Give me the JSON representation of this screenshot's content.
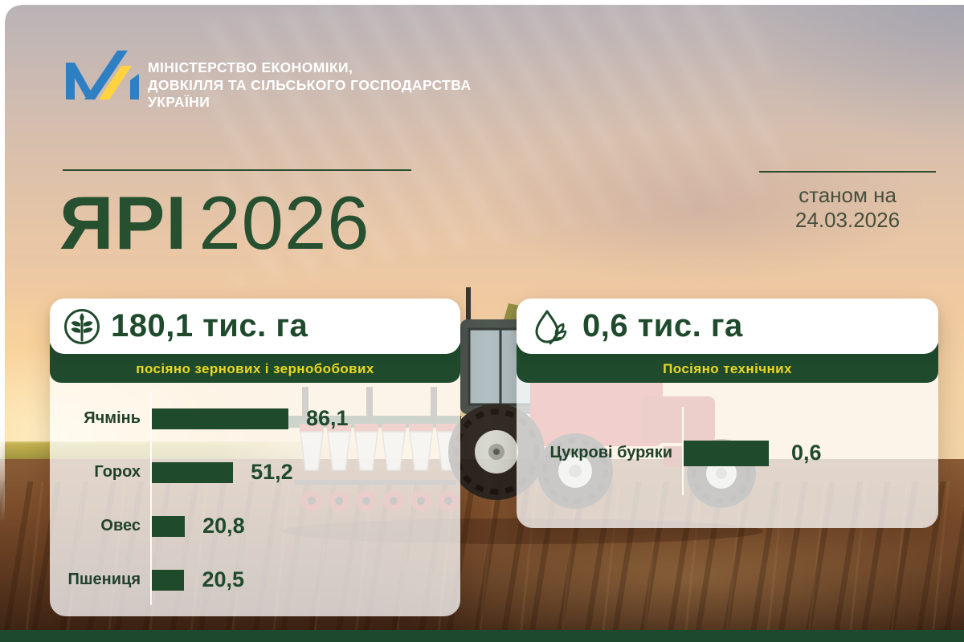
{
  "ministry": {
    "name_lines": [
      "МІНІСТЕРСТВО ЕКОНОМІКИ,",
      "ДОВКІЛЛЯ ТА СІЛЬСЬКОГО ГОСПОДАРСТВА",
      "УКРАЇНИ"
    ],
    "line1": "МІНІСТЕРСТВО ЕКОНОМІКИ,",
    "line2": "ДОВКІЛЛЯ ТА СІЛЬСЬКОГО ГОСПОДАРСТВА",
    "line3": "УКРАЇНИ"
  },
  "title": {
    "word": "ЯРІ",
    "year": "2026"
  },
  "dateline": {
    "label": "станом на",
    "date": "24.03.2026"
  },
  "cards": [
    {
      "icon": "wheat-icon",
      "total": "180,1 тис. га",
      "banner": "посіяно зернових і зернобобових",
      "rows": [
        {
          "label": "Ячмінь",
          "value": 86.1,
          "value_label": "86,1"
        },
        {
          "label": "Горох",
          "value": 51.2,
          "value_label": "51,2"
        },
        {
          "label": "Овес",
          "value": 20.8,
          "value_label": "20,8"
        },
        {
          "label": "Пшениця",
          "value": 20.5,
          "value_label": "20,5"
        }
      ]
    },
    {
      "icon": "droplet-leaf-icon",
      "total": "0,6 тис. га",
      "banner": "Посіяно технічних",
      "rows": [
        {
          "label": "Цукрові буряки",
          "value": 0.6,
          "value_label": "0,6"
        }
      ]
    }
  ],
  "chart_data": [
    {
      "type": "bar",
      "orientation": "horizontal",
      "title": "посіяно зернових і зернобобових",
      "total_label": "180,1 тис. га",
      "categories": [
        "Ячмінь",
        "Горох",
        "Овес",
        "Пшениця"
      ],
      "values": [
        86.1,
        51.2,
        20.8,
        20.5
      ],
      "unit": "тис. га",
      "legend": false,
      "grid": false
    },
    {
      "type": "bar",
      "orientation": "horizontal",
      "title": "Посіяно технічних",
      "total_label": "0,6 тис. га",
      "categories": [
        "Цукрові буряки"
      ],
      "values": [
        0.6
      ],
      "unit": "тис. га",
      "legend": false,
      "grid": false
    }
  ],
  "colors": {
    "dark_green": "#1f4a2c",
    "footer_green": "#1d4a2e",
    "banner_yellow": "#e9d824",
    "logo_blue": "#2f80c3",
    "logo_yellow": "#ffd23f",
    "title_green": "#26502f"
  }
}
